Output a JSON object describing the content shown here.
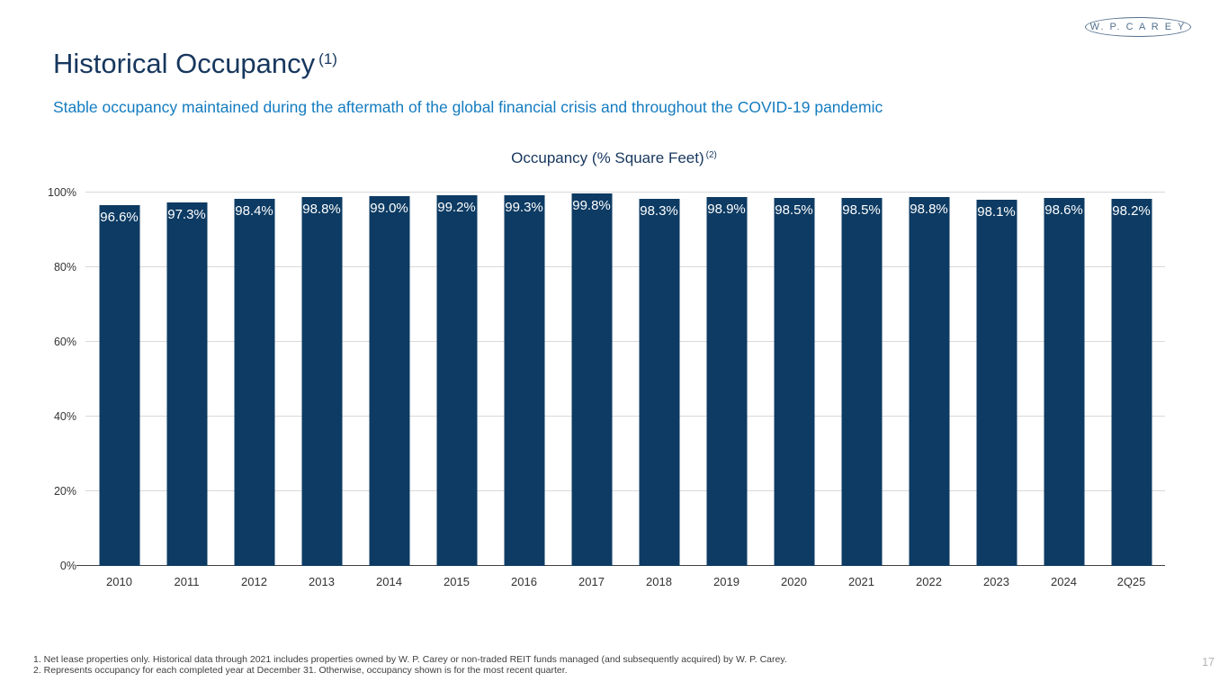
{
  "logo": {
    "text": "W. P. C A R E Y"
  },
  "page": {
    "title": "Historical Occupancy",
    "title_superscript": "(1)",
    "subtitle": "Stable occupancy maintained during the aftermath of the global financial crisis and throughout the COVID-19 pandemic",
    "page_number": "17"
  },
  "footnotes": [
    "1. Net lease properties only. Historical data through 2021 includes properties owned by W. P. Carey or non-traded REIT funds managed (and subsequently acquired) by W. P. Carey.",
    "2. Represents occupancy for each completed year at December 31. Otherwise, occupancy shown is for the most recent quarter."
  ],
  "chart_data": {
    "type": "bar",
    "title": "Occupancy (% Square Feet)",
    "title_superscript": "(2)",
    "categories": [
      "2010",
      "2011",
      "2012",
      "2013",
      "2014",
      "2015",
      "2016",
      "2017",
      "2018",
      "2019",
      "2020",
      "2021",
      "2022",
      "2023",
      "2024",
      "2Q25"
    ],
    "values": [
      96.6,
      97.3,
      98.4,
      98.8,
      99.0,
      99.2,
      99.3,
      99.8,
      98.3,
      98.9,
      98.5,
      98.5,
      98.8,
      98.1,
      98.6,
      98.2
    ],
    "value_label_suffix": "%",
    "xlabel": "",
    "ylabel": "",
    "ylim": [
      0,
      100
    ],
    "yticks": [
      "0%",
      "20%",
      "40%",
      "60%",
      "80%",
      "100%"
    ],
    "grid": true,
    "legend": "none",
    "bar_color": "#0d3b63",
    "data_label_color": "#ffffff",
    "gridline_color": "#d9d9d9"
  }
}
